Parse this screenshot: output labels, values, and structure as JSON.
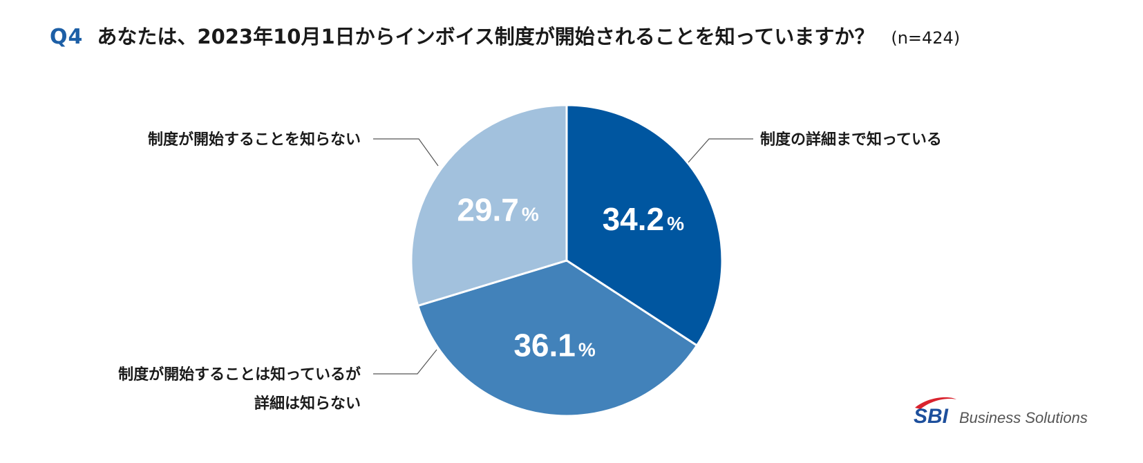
{
  "header": {
    "question_number": "Q4",
    "question_text": "あなたは、2023年10月1日からインボイス制度が開始されることを知っていますか？",
    "sample_size": "(n=424)"
  },
  "chart_data": {
    "type": "pie",
    "title": "",
    "slices": [
      {
        "label": "制度の詳細まで知っている",
        "value": 34.2,
        "display": "34.2",
        "color": "#0056a0"
      },
      {
        "label": "制度が開始することは知っているが 詳細は知らない",
        "label_lines": [
          "制度が開始することは知っているが",
          "詳細は知らない"
        ],
        "value": 36.1,
        "display": "36.1",
        "color": "#4282ba"
      },
      {
        "label": "制度が開始することを知らない",
        "value": 29.7,
        "display": "29.7",
        "color": "#a2c1dd"
      }
    ],
    "percent_sign": "%"
  },
  "logo": {
    "brand": "SBI",
    "text": "Business Solutions",
    "swoosh_color": "#d9232e",
    "brand_color": "#1d4f9c"
  }
}
